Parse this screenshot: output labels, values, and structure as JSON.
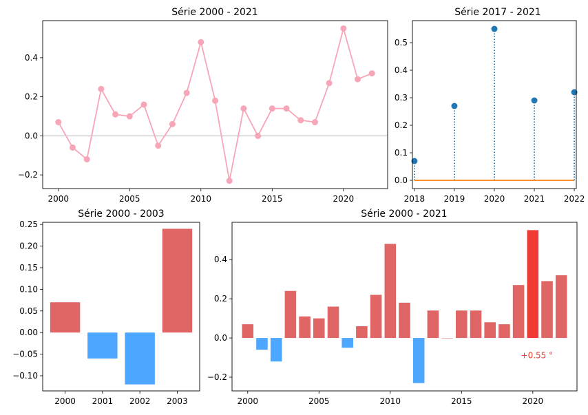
{
  "chart_data": [
    {
      "type": "line",
      "title": "Série 2000 - 2021",
      "x": [
        2000,
        2001,
        2002,
        2003,
        2004,
        2005,
        2006,
        2007,
        2008,
        2009,
        2010,
        2011,
        2012,
        2013,
        2014,
        2015,
        2016,
        2017,
        2018,
        2019,
        2020,
        2021,
        2022
      ],
      "values": [
        0.07,
        -0.06,
        -0.12,
        0.24,
        0.11,
        0.1,
        0.16,
        -0.05,
        0.06,
        0.22,
        0.48,
        0.18,
        -0.23,
        0.14,
        0.0,
        0.14,
        0.14,
        0.08,
        0.07,
        0.27,
        0.55,
        0.29,
        0.32
      ],
      "xlim": [
        1998.9,
        2023.1
      ],
      "ylim": [
        -0.27,
        0.59
      ],
      "xticks": [
        2000,
        2005,
        2010,
        2015,
        2020
      ],
      "yticks": [
        -0.2,
        0.0,
        0.2,
        0.4
      ],
      "ytick_labels": [
        "−0.2",
        "0.0",
        "0.2",
        "0.4"
      ],
      "color": "#f7a6b8",
      "zero_line": true
    },
    {
      "type": "stem",
      "title": "Série 2017 - 2021",
      "x": [
        2018,
        2019,
        2020,
        2021,
        2022
      ],
      "values": [
        0.07,
        0.27,
        0.55,
        0.29,
        0.32
      ],
      "xlim": [
        2017.95,
        2022.05
      ],
      "ylim": [
        -0.03,
        0.58
      ],
      "xticks": [
        2018,
        2019,
        2020,
        2021,
        2022
      ],
      "yticks": [
        0.0,
        0.1,
        0.2,
        0.3,
        0.4,
        0.5
      ],
      "ytick_labels": [
        "0.0",
        "0.1",
        "0.2",
        "0.3",
        "0.4",
        "0.5"
      ],
      "marker_color": "#1f77b4",
      "baseline_color": "#ff7f0e"
    },
    {
      "type": "bar",
      "title": "Série 2000 - 2003",
      "categories": [
        "2000",
        "2001",
        "2002",
        "2003"
      ],
      "values": [
        0.07,
        -0.06,
        -0.12,
        0.24
      ],
      "ylim": [
        -0.135,
        0.255
      ],
      "yticks": [
        -0.1,
        -0.05,
        0.0,
        0.05,
        0.1,
        0.15,
        0.2,
        0.25
      ],
      "ytick_labels": [
        "−0.10",
        "−0.05",
        "0.00",
        "0.05",
        "0.10",
        "0.15",
        "0.20",
        "0.25"
      ],
      "positive_color": "#e06666",
      "negative_color": "#4da6ff"
    },
    {
      "type": "bar",
      "title": "Série 2000 - 2021",
      "x": [
        2000,
        2001,
        2002,
        2003,
        2004,
        2005,
        2006,
        2007,
        2008,
        2009,
        2010,
        2011,
        2012,
        2013,
        2014,
        2015,
        2016,
        2017,
        2018,
        2019,
        2020,
        2021,
        2022
      ],
      "values": [
        0.07,
        -0.06,
        -0.12,
        0.24,
        0.11,
        0.1,
        0.16,
        -0.05,
        0.06,
        0.22,
        0.48,
        0.18,
        -0.23,
        0.14,
        0.0,
        0.14,
        0.14,
        0.08,
        0.07,
        0.27,
        0.55,
        0.29,
        0.32
      ],
      "xlim": [
        1998.9,
        2023.1
      ],
      "ylim": [
        -0.27,
        0.59
      ],
      "xticks": [
        2000,
        2005,
        2010,
        2015,
        2020
      ],
      "yticks": [
        -0.2,
        0.0,
        0.2,
        0.4
      ],
      "ytick_labels": [
        "−0.2",
        "0.0",
        "0.2",
        "0.4"
      ],
      "positive_color": "#e06666",
      "negative_color": "#4da6ff",
      "highlight_index": 20,
      "highlight_color": "#ef3b33",
      "annotation": {
        "text": "+0.55 °",
        "x": 2020,
        "y": -0.09
      }
    }
  ]
}
